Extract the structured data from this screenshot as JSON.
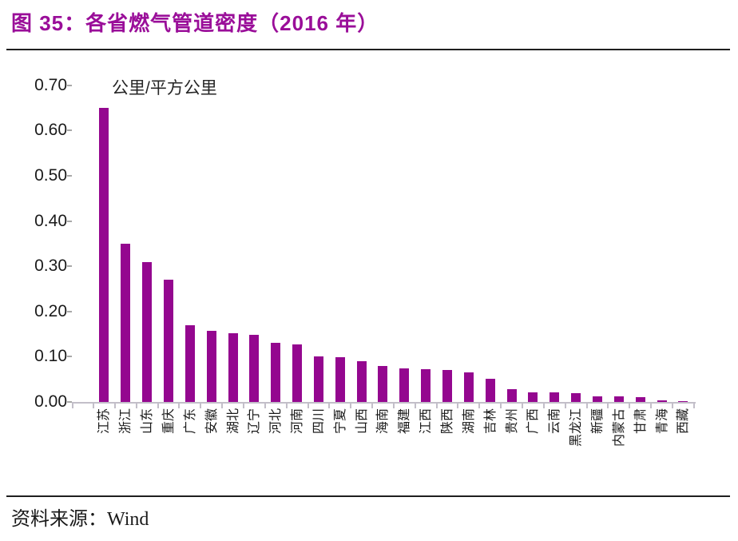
{
  "header": {
    "title": "图 35：各省燃气管道密度（2016 年）"
  },
  "footer": {
    "source": "资料来源：Wind"
  },
  "colors": {
    "accent_bar": "#94078F",
    "title_text": "#9A0E99",
    "axis_line": "#C3BFC9",
    "tick_dark": "#A8A8A8",
    "text": "#1A1A1A"
  },
  "chart_data": {
    "type": "bar",
    "title": "各省燃气管道密度（2016 年）",
    "figure_number": "图 35",
    "unit_label": "公里/平方公里",
    "xlabel": "",
    "ylabel": "公里/平方公里",
    "ylim": [
      0,
      0.7
    ],
    "ytick_labels": [
      "0.00",
      "0.10",
      "0.20",
      "0.30",
      "0.40",
      "0.50",
      "0.60",
      "0.70"
    ],
    "grid": false,
    "legend_position": "none",
    "bar_color": "#94078F",
    "categories": [
      "江苏",
      "浙江",
      "山东",
      "重庆",
      "广东",
      "安徽",
      "湖北",
      "辽宁",
      "河北",
      "河南",
      "四川",
      "宁夏",
      "山西",
      "海南",
      "福建",
      "江西",
      "陕西",
      "湖南",
      "吉林",
      "贵州",
      "广西",
      "云南",
      "黑龙江",
      "新疆",
      "内蒙古",
      "甘肃",
      "青海",
      "西藏"
    ],
    "values": [
      0.65,
      0.35,
      0.31,
      0.27,
      0.17,
      0.157,
      0.152,
      0.148,
      0.131,
      0.127,
      0.101,
      0.099,
      0.09,
      0.08,
      0.075,
      0.073,
      0.07,
      0.065,
      0.051,
      0.029,
      0.022,
      0.022,
      0.02,
      0.012,
      0.012,
      0.011,
      0.004,
      0.001
    ]
  }
}
